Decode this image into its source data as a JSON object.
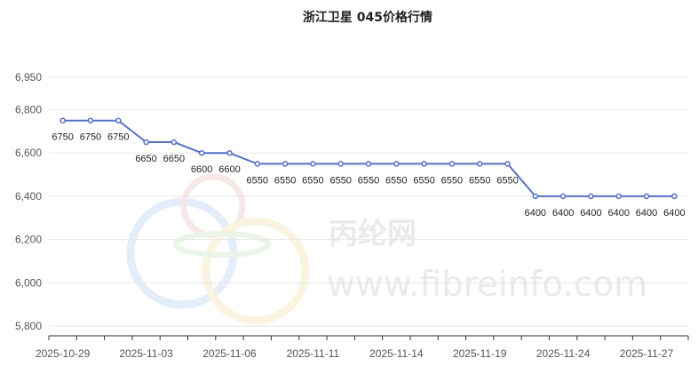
{
  "chart_data": {
    "type": "line",
    "title": "浙江卫星 045价格行情",
    "xlabel": "",
    "ylabel": "",
    "ylim": [
      5800,
      6950
    ],
    "y_ticks": [
      5800,
      6000,
      6200,
      6400,
      6600,
      6800,
      6950
    ],
    "y_tick_labels": [
      "5,800",
      "6,000",
      "6,200",
      "6,400",
      "6,600",
      "6,800",
      "6,950"
    ],
    "x_tick_labels": [
      "2025-10-29",
      "2025-11-03",
      "2025-11-06",
      "2025-11-11",
      "2025-11-14",
      "2025-11-19",
      "2025-11-24",
      "2025-11-27"
    ],
    "x": [
      "2025-10-29",
      "2025-10-30",
      "2025-10-31",
      "2025-11-03",
      "2025-11-04",
      "2025-11-05",
      "2025-11-06",
      "2025-11-07",
      "2025-11-10",
      "2025-11-11",
      "2025-11-12",
      "2025-11-13",
      "2025-11-14",
      "2025-11-17",
      "2025-11-18",
      "2025-11-19",
      "2025-11-20",
      "2025-11-21",
      "2025-11-24",
      "2025-11-25",
      "2025-11-26",
      "2025-11-27",
      "2025-11-28"
    ],
    "series": [
      {
        "values": [
          6750,
          6750,
          6750,
          6650,
          6650,
          6600,
          6600,
          6550,
          6550,
          6550,
          6550,
          6550,
          6550,
          6550,
          6550,
          6550,
          6550,
          6400,
          6400,
          6400,
          6400,
          6400,
          6400
        ]
      }
    ],
    "grid": true,
    "legend": "none",
    "color": "#5470c6"
  },
  "watermark": {
    "cn": "丙纶网",
    "url": "www.fibreinfo.com"
  }
}
